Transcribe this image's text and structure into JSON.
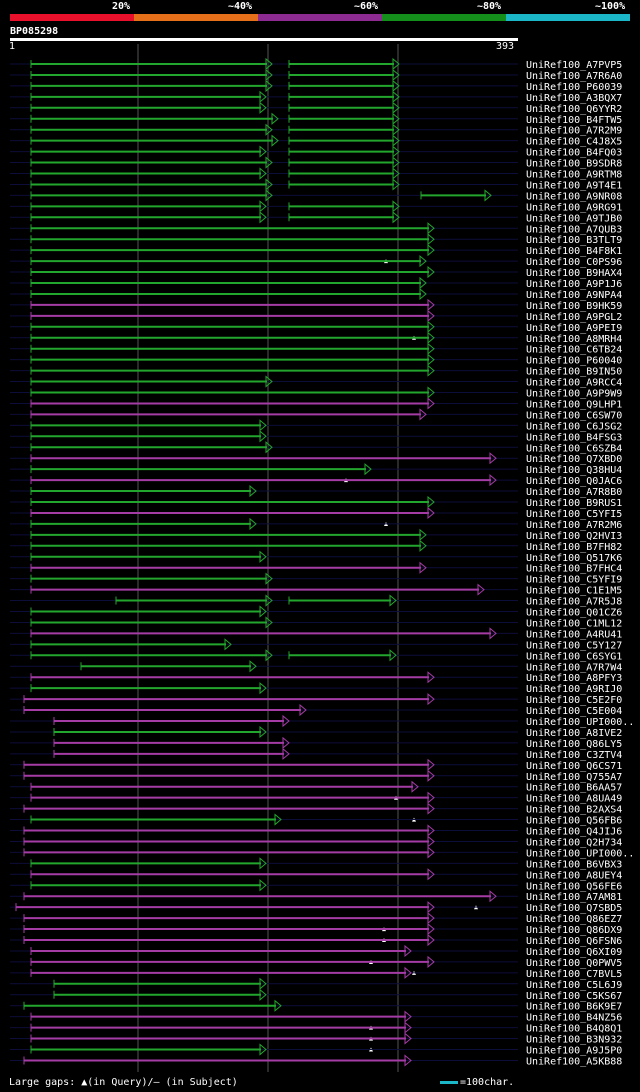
{
  "header": {
    "legend": [
      {
        "label": "20%",
        "color": "#e8102b"
      },
      {
        "label": "~40%",
        "color": "#e66f19"
      },
      {
        "label": "~60%",
        "color": "#8e2b92"
      },
      {
        "label": "~80%",
        "color": "#148f1b"
      },
      {
        "label": "~100%",
        "color": "#1bb6c7"
      }
    ],
    "query_id": "BP085298",
    "query_start": "1",
    "query_end": "393"
  },
  "chart_data": {
    "type": "alignment",
    "query_length": 393,
    "hits": [
      {
        "name": "UniRef100_A7PVP5",
        "color": "green",
        "segs": [
          [
            15,
            256
          ],
          [
            273,
            383
          ]
        ],
        "gap": null
      },
      {
        "name": "UniRef100_A7R6A0",
        "color": "green",
        "segs": [
          [
            15,
            256
          ],
          [
            273,
            383
          ]
        ],
        "gap": null
      },
      {
        "name": "UniRef100_P60039",
        "color": "green",
        "segs": [
          [
            15,
            256
          ],
          [
            273,
            383
          ]
        ],
        "gap": null
      },
      {
        "name": "UniRef100_A3BQX7",
        "color": "green",
        "segs": [
          [
            15,
            250
          ],
          [
            273,
            383
          ]
        ],
        "gap": null
      },
      {
        "name": "UniRef100_Q6YYR2",
        "color": "green",
        "segs": [
          [
            15,
            250
          ],
          [
            273,
            383
          ]
        ],
        "gap": null
      },
      {
        "name": "UniRef100_B4FTW5",
        "color": "green",
        "segs": [
          [
            15,
            262
          ],
          [
            273,
            383
          ]
        ],
        "gap": null
      },
      {
        "name": "UniRef100_A7R2M9",
        "color": "green",
        "segs": [
          [
            15,
            256
          ],
          [
            273,
            383
          ]
        ],
        "gap": null
      },
      {
        "name": "UniRef100_C4J8X5",
        "color": "green",
        "segs": [
          [
            15,
            262
          ],
          [
            273,
            383
          ]
        ],
        "gap": null
      },
      {
        "name": "UniRef100_B4FQ03",
        "color": "green",
        "segs": [
          [
            15,
            250
          ],
          [
            273,
            383
          ]
        ],
        "gap": null
      },
      {
        "name": "UniRef100_B9SDR8",
        "color": "green",
        "segs": [
          [
            15,
            256
          ],
          [
            273,
            383
          ]
        ],
        "gap": null
      },
      {
        "name": "UniRef100_A9RTM8",
        "color": "green",
        "segs": [
          [
            15,
            250
          ],
          [
            273,
            383
          ]
        ],
        "gap": null
      },
      {
        "name": "UniRef100_A9T4E1",
        "color": "green",
        "segs": [
          [
            15,
            256
          ],
          [
            273,
            383
          ]
        ],
        "gap": null
      },
      {
        "name": "UniRef100_A9NR08",
        "color": "green",
        "segs": [
          [
            15,
            256
          ],
          [
            405,
            475
          ]
        ],
        "gap": null
      },
      {
        "name": "UniRef100_A9RG91",
        "color": "green",
        "segs": [
          [
            15,
            250
          ],
          [
            273,
            383
          ]
        ],
        "gap": null
      },
      {
        "name": "UniRef100_A9TJB0",
        "color": "green",
        "segs": [
          [
            15,
            250
          ],
          [
            273,
            383
          ]
        ],
        "gap": null
      },
      {
        "name": "UniRef100_A7QUB3",
        "color": "green",
        "segs": [
          [
            15,
            418
          ]
        ],
        "gap": null
      },
      {
        "name": "UniRef100_B3TLT9",
        "color": "green",
        "segs": [
          [
            15,
            418
          ]
        ],
        "gap": null
      },
      {
        "name": "UniRef100_B4F8K1",
        "color": "green",
        "segs": [
          [
            15,
            418
          ]
        ],
        "gap": 370
      },
      {
        "name": "UniRef100_C0PS96",
        "color": "green",
        "segs": [
          [
            15,
            410
          ]
        ],
        "gap": null
      },
      {
        "name": "UniRef100_B9HAX4",
        "color": "green",
        "segs": [
          [
            15,
            418
          ]
        ],
        "gap": null
      },
      {
        "name": "UniRef100_A9P1J6",
        "color": "green",
        "segs": [
          [
            15,
            410
          ]
        ],
        "gap": null
      },
      {
        "name": "UniRef100_A9NPA4",
        "color": "green",
        "segs": [
          [
            15,
            410
          ]
        ],
        "gap": null
      },
      {
        "name": "UniRef100_B9HK59",
        "color": "purple",
        "segs": [
          [
            15,
            418
          ]
        ],
        "gap": null
      },
      {
        "name": "UniRef100_A9PGL2",
        "color": "purple",
        "segs": [
          [
            15,
            418
          ]
        ],
        "gap": null
      },
      {
        "name": "UniRef100_A9PEI9",
        "color": "green",
        "segs": [
          [
            15,
            418
          ]
        ],
        "gap": 398
      },
      {
        "name": "UniRef100_A8MRH4",
        "color": "green",
        "segs": [
          [
            15,
            418
          ]
        ],
        "gap": null
      },
      {
        "name": "UniRef100_C6TB24",
        "color": "green",
        "segs": [
          [
            15,
            418
          ]
        ],
        "gap": null
      },
      {
        "name": "UniRef100_P60040",
        "color": "green",
        "segs": [
          [
            15,
            418
          ]
        ],
        "gap": null
      },
      {
        "name": "UniRef100_B9IN50",
        "color": "green",
        "segs": [
          [
            15,
            418
          ]
        ],
        "gap": null
      },
      {
        "name": "UniRef100_A9RCC4",
        "color": "green",
        "segs": [
          [
            15,
            256
          ]
        ],
        "gap": null
      },
      {
        "name": "UniRef100_A9P9W9",
        "color": "green",
        "segs": [
          [
            15,
            418
          ]
        ],
        "gap": null
      },
      {
        "name": "UniRef100_Q9LHP1",
        "color": "purple",
        "segs": [
          [
            15,
            418
          ]
        ],
        "gap": null
      },
      {
        "name": "UniRef100_C6SW70",
        "color": "purple",
        "segs": [
          [
            15,
            410
          ]
        ],
        "gap": null
      },
      {
        "name": "UniRef100_C6JSG2",
        "color": "green",
        "segs": [
          [
            15,
            250
          ]
        ],
        "gap": null
      },
      {
        "name": "UniRef100_B4FSG3",
        "color": "green",
        "segs": [
          [
            15,
            250
          ]
        ],
        "gap": null
      },
      {
        "name": "UniRef100_C6SZB4",
        "color": "green",
        "segs": [
          [
            15,
            256
          ]
        ],
        "gap": null
      },
      {
        "name": "UniRef100_Q7XBD0",
        "color": "purple",
        "segs": [
          [
            15,
            480
          ]
        ],
        "gap": null
      },
      {
        "name": "UniRef100_Q38HU4",
        "color": "green",
        "segs": [
          [
            15,
            355
          ]
        ],
        "gap": 330
      },
      {
        "name": "UniRef100_Q0JAC6",
        "color": "purple",
        "segs": [
          [
            15,
            480
          ]
        ],
        "gap": null
      },
      {
        "name": "UniRef100_A7R8B0",
        "color": "green",
        "segs": [
          [
            15,
            240
          ]
        ],
        "gap": null
      },
      {
        "name": "UniRef100_B9RUS1",
        "color": "green",
        "segs": [
          [
            15,
            418
          ]
        ],
        "gap": null
      },
      {
        "name": "UniRef100_C5YFI5",
        "color": "purple",
        "segs": [
          [
            15,
            418
          ]
        ],
        "gap": 370
      },
      {
        "name": "UniRef100_A7R2M6",
        "color": "green",
        "segs": [
          [
            15,
            240
          ]
        ],
        "gap": null
      },
      {
        "name": "UniRef100_Q2HVI3",
        "color": "green",
        "segs": [
          [
            15,
            410
          ]
        ],
        "gap": null
      },
      {
        "name": "UniRef100_B7FH82",
        "color": "green",
        "segs": [
          [
            15,
            410
          ]
        ],
        "gap": null
      },
      {
        "name": "UniRef100_Q517K6",
        "color": "green",
        "segs": [
          [
            15,
            250
          ]
        ],
        "gap": null
      },
      {
        "name": "UniRef100_B7FHC4",
        "color": "purple",
        "segs": [
          [
            15,
            410
          ]
        ],
        "gap": null
      },
      {
        "name": "UniRef100_C5YFI9",
        "color": "green",
        "segs": [
          [
            15,
            256
          ]
        ],
        "gap": null
      },
      {
        "name": "UniRef100_C1E1M5",
        "color": "purple",
        "segs": [
          [
            15,
            468
          ]
        ],
        "gap": null
      },
      {
        "name": "UniRef100_A7R5J8",
        "color": "green",
        "segs": [
          [
            100,
            256
          ],
          [
            273,
            380
          ]
        ],
        "gap": null
      },
      {
        "name": "UniRef100_Q01CZ6",
        "color": "green",
        "segs": [
          [
            15,
            250
          ]
        ],
        "gap": null
      },
      {
        "name": "UniRef100_C1ML12",
        "color": "green",
        "segs": [
          [
            15,
            256
          ]
        ],
        "gap": null
      },
      {
        "name": "UniRef100_A4RU41",
        "color": "purple",
        "segs": [
          [
            15,
            480
          ]
        ],
        "gap": null
      },
      {
        "name": "UniRef100_C5Y127",
        "color": "green",
        "segs": [
          [
            15,
            215
          ]
        ],
        "gap": null
      },
      {
        "name": "UniRef100_C6SYG1",
        "color": "green",
        "segs": [
          [
            15,
            256
          ],
          [
            273,
            380
          ]
        ],
        "gap": null
      },
      {
        "name": "UniRef100_A7R7W4",
        "color": "green",
        "segs": [
          [
            65,
            240
          ]
        ],
        "gap": null
      },
      {
        "name": "UniRef100_A8PFY3",
        "color": "purple",
        "segs": [
          [
            15,
            418
          ]
        ],
        "gap": null
      },
      {
        "name": "UniRef100_A9RIJ0",
        "color": "green",
        "segs": [
          [
            15,
            250
          ]
        ],
        "gap": null
      },
      {
        "name": "UniRef100_C5E2F0",
        "color": "purple",
        "segs": [
          [
            8,
            418
          ]
        ],
        "gap": null
      },
      {
        "name": "UniRef100_C5E004",
        "color": "purple",
        "segs": [
          [
            8,
            290
          ]
        ],
        "gap": null
      },
      {
        "name": "UniRef100_UPI000..",
        "color": "purple",
        "segs": [
          [
            38,
            273
          ]
        ],
        "gap": null
      },
      {
        "name": "UniRef100_A8IVE2",
        "color": "green",
        "segs": [
          [
            38,
            250
          ]
        ],
        "gap": null
      },
      {
        "name": "UniRef100_Q86LY5",
        "color": "purple",
        "segs": [
          [
            38,
            273
          ]
        ],
        "gap": null
      },
      {
        "name": "UniRef100_C3ZTV4",
        "color": "purple",
        "segs": [
          [
            38,
            273
          ]
        ],
        "gap": null
      },
      {
        "name": "UniRef100_Q6CS71",
        "color": "purple",
        "segs": [
          [
            8,
            418
          ]
        ],
        "gap": null
      },
      {
        "name": "UniRef100_Q755A7",
        "color": "purple",
        "segs": [
          [
            8,
            418
          ]
        ],
        "gap": null
      },
      {
        "name": "UniRef100_B6AA57",
        "color": "purple",
        "segs": [
          [
            15,
            402
          ]
        ],
        "gap": 380
      },
      {
        "name": "UniRef100_A8UA49",
        "color": "purple",
        "segs": [
          [
            15,
            418
          ]
        ],
        "gap": null
      },
      {
        "name": "UniRef100_B2AXS4",
        "color": "purple",
        "segs": [
          [
            8,
            418
          ]
        ],
        "gap": 398
      },
      {
        "name": "UniRef100_Q56FB6",
        "color": "green",
        "segs": [
          [
            15,
            265
          ]
        ],
        "gap": null
      },
      {
        "name": "UniRef100_Q4JIJ6",
        "color": "purple",
        "segs": [
          [
            8,
            418
          ]
        ],
        "gap": null
      },
      {
        "name": "UniRef100_Q2H734",
        "color": "purple",
        "segs": [
          [
            8,
            418
          ]
        ],
        "gap": null
      },
      {
        "name": "UniRef100_UPI000..",
        "color": "purple",
        "segs": [
          [
            8,
            418
          ]
        ],
        "gap": null
      },
      {
        "name": "UniRef100_B6VBX3",
        "color": "green",
        "segs": [
          [
            15,
            250
          ]
        ],
        "gap": null
      },
      {
        "name": "UniRef100_A8UEY4",
        "color": "purple",
        "segs": [
          [
            15,
            418
          ]
        ],
        "gap": null
      },
      {
        "name": "UniRef100_Q56FE6",
        "color": "green",
        "segs": [
          [
            15,
            250
          ]
        ],
        "gap": null
      },
      {
        "name": "UniRef100_A7AM81",
        "color": "purple",
        "segs": [
          [
            8,
            480
          ]
        ],
        "gap": 460
      },
      {
        "name": "UniRef100_Q7SBD5",
        "color": "purple",
        "segs": [
          [
            0,
            418
          ]
        ],
        "gap": null
      },
      {
        "name": "UniRef100_Q86EZ7",
        "color": "purple",
        "segs": [
          [
            8,
            418
          ]
        ],
        "gap": 368
      },
      {
        "name": "UniRef100_Q86DX9",
        "color": "purple",
        "segs": [
          [
            8,
            418
          ]
        ],
        "gap": 368
      },
      {
        "name": "UniRef100_Q6FSN6",
        "color": "purple",
        "segs": [
          [
            8,
            418
          ]
        ],
        "gap": null
      },
      {
        "name": "UniRef100_Q6XI09",
        "color": "purple",
        "segs": [
          [
            15,
            395
          ]
        ],
        "gap": 355
      },
      {
        "name": "UniRef100_Q0PWV5",
        "color": "purple",
        "segs": [
          [
            15,
            418
          ]
        ],
        "gap": 398
      },
      {
        "name": "UniRef100_C7BVL5",
        "color": "purple",
        "segs": [
          [
            15,
            395
          ]
        ],
        "gap": null
      },
      {
        "name": "UniRef100_C5L6J9",
        "color": "green",
        "segs": [
          [
            38,
            250
          ]
        ],
        "gap": null
      },
      {
        "name": "UniRef100_C5KS67",
        "color": "green",
        "segs": [
          [
            38,
            250
          ]
        ],
        "gap": null
      },
      {
        "name": "UniRef100_B6K9E7",
        "color": "green",
        "segs": [
          [
            8,
            265
          ]
        ],
        "gap": null
      },
      {
        "name": "UniRef100_B4NZ56",
        "color": "purple",
        "segs": [
          [
            15,
            395
          ]
        ],
        "gap": 355
      },
      {
        "name": "UniRef100_B4Q8Q1",
        "color": "purple",
        "segs": [
          [
            15,
            395
          ]
        ],
        "gap": 355
      },
      {
        "name": "UniRef100_B3N932",
        "color": "purple",
        "segs": [
          [
            15,
            395
          ]
        ],
        "gap": 355
      },
      {
        "name": "UniRef100_A9J5P0",
        "color": "green",
        "segs": [
          [
            15,
            250
          ]
        ],
        "gap": null
      },
      {
        "name": "UniRef100_A5KB88",
        "color": "purple",
        "segs": [
          [
            8,
            395
          ]
        ],
        "gap": null
      }
    ]
  },
  "colors": {
    "green": "#23a62d",
    "purple": "#a53ca6",
    "bg": "#000000",
    "grid": "#555555"
  },
  "footer": {
    "left": "Large gaps: ▲(in Query)/— (in Subject)",
    "right": "=100char."
  }
}
